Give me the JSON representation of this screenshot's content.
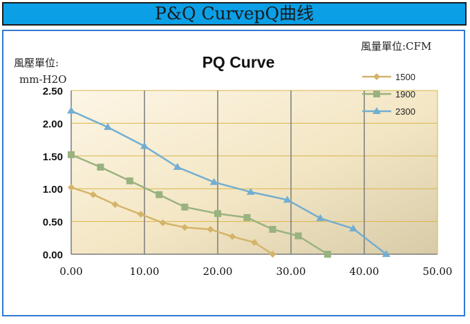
{
  "banner": {
    "title": "P&Q CurvepQ曲线"
  },
  "chart_data": {
    "type": "line",
    "title": "PQ Curve",
    "ylabel_line1": "風壓單位:",
    "ylabel_line2": "mm-H2O",
    "xlabel": "風量單位:CFM",
    "xlim": [
      0,
      50
    ],
    "ylim": [
      0,
      2.5
    ],
    "x_ticks": [
      "0.00",
      "10.00",
      "20.00",
      "30.00",
      "40.00",
      "50.00"
    ],
    "y_ticks": [
      "0.00",
      "0.50",
      "1.00",
      "1.50",
      "2.00",
      "2.50"
    ],
    "grid": true,
    "legend_position": "top-right",
    "series": [
      {
        "name": "1500",
        "color": "#d4b46a",
        "marker": "diamond",
        "points": [
          [
            0,
            1.02
          ],
          [
            3,
            0.91
          ],
          [
            6,
            0.76
          ],
          [
            9.5,
            0.61
          ],
          [
            12.5,
            0.48
          ],
          [
            15.5,
            0.41
          ],
          [
            19,
            0.38
          ],
          [
            22,
            0.27
          ],
          [
            25,
            0.18
          ],
          [
            27.5,
            0.0
          ]
        ]
      },
      {
        "name": "1900",
        "color": "#99b27f",
        "marker": "square",
        "points": [
          [
            0,
            1.52
          ],
          [
            4,
            1.33
          ],
          [
            8,
            1.12
          ],
          [
            12,
            0.91
          ],
          [
            15.5,
            0.72
          ],
          [
            20,
            0.62
          ],
          [
            24,
            0.56
          ],
          [
            27.5,
            0.38
          ],
          [
            31,
            0.28
          ],
          [
            35,
            0.0
          ]
        ]
      },
      {
        "name": "2300",
        "color": "#72aed1",
        "marker": "triangle",
        "points": [
          [
            0,
            2.19
          ],
          [
            5,
            1.94
          ],
          [
            10,
            1.65
          ],
          [
            14.5,
            1.33
          ],
          [
            19.5,
            1.1
          ],
          [
            24.5,
            0.95
          ],
          [
            29.5,
            0.83
          ],
          [
            34,
            0.55
          ],
          [
            38.5,
            0.39
          ],
          [
            43,
            0.0
          ]
        ]
      }
    ]
  }
}
